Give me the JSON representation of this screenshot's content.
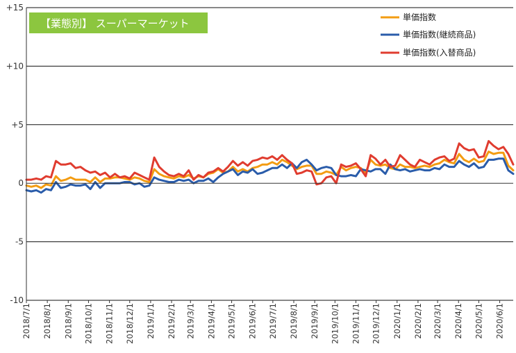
{
  "chart_data": {
    "type": "line",
    "title": "【業態別】 スーパーマーケット",
    "colors": {
      "title_bg": "#8cc63f",
      "axis": "#333333",
      "grid": "#111111",
      "series": [
        "#f39c12",
        "#2a5caa",
        "#e03c2f"
      ]
    },
    "ylim": [
      -10,
      15
    ],
    "yticks": [
      15,
      10,
      5,
      0,
      -5,
      -10
    ],
    "ytick_labels": [
      "+15",
      "+10",
      "+5",
      "0",
      "-5",
      "-10"
    ],
    "grid": "horizontal",
    "legend_position": "top-right",
    "x_start": "2018/7/1",
    "x_end": "2020/6/21",
    "x_ticks": [
      "2018/7/1",
      "2018/8/1",
      "2018/9/1",
      "2018/10/1",
      "2018/11/1",
      "2018/12/1",
      "2019/1/1",
      "2019/2/1",
      "2019/3/1",
      "2019/4/1",
      "2019/5/1",
      "2019/6/1",
      "2019/7/1",
      "2019/8/1",
      "2019/9/1",
      "2019/10/1",
      "2019/11/1",
      "2019/12/1",
      "2020/1/1",
      "2020/2/1",
      "2020/3/1",
      "2020/4/1",
      "2020/5/1",
      "2020/6/1"
    ],
    "series": [
      {
        "name": "単価指数",
        "values": [
          -0.2,
          -0.3,
          -0.2,
          -0.4,
          -0.1,
          -0.2,
          0.6,
          0.2,
          0.3,
          0.5,
          0.3,
          0.3,
          0.3,
          0.1,
          0.5,
          0.1,
          0.4,
          0.4,
          0.5,
          0.5,
          0.4,
          0.3,
          0.5,
          0.4,
          0.2,
          0.1,
          1.2,
          0.8,
          0.6,
          0.5,
          0.4,
          0.6,
          0.5,
          0.7,
          0.4,
          0.6,
          0.5,
          0.8,
          0.9,
          1.2,
          0.9,
          1.0,
          1.4,
          1.0,
          1.2,
          1.0,
          1.3,
          1.4,
          1.6,
          1.6,
          1.8,
          1.6,
          2.0,
          1.8,
          1.5,
          1.2,
          1.4,
          1.5,
          1.5,
          0.8,
          0.8,
          1.0,
          0.9,
          0.7,
          1.4,
          1.1,
          1.3,
          1.4,
          1.3,
          0.9,
          2.0,
          1.6,
          1.5,
          1.6,
          1.3,
          1.2,
          1.6,
          1.4,
          1.4,
          1.3,
          1.4,
          1.5,
          1.4,
          1.6,
          1.7,
          2.0,
          1.8,
          1.7,
          2.5,
          2.0,
          1.8,
          2.1,
          1.8,
          1.9,
          2.7,
          2.5,
          2.6,
          2.6,
          1.5,
          1.1
        ]
      },
      {
        "name": "単価指数(継続商品)",
        "values": [
          -0.6,
          -0.7,
          -0.6,
          -0.8,
          -0.5,
          -0.6,
          0.1,
          -0.4,
          -0.3,
          -0.1,
          -0.2,
          -0.2,
          -0.1,
          -0.5,
          0.1,
          -0.4,
          0.0,
          0.0,
          0.0,
          0.0,
          0.1,
          0.1,
          -0.1,
          0.0,
          -0.3,
          -0.2,
          0.5,
          0.3,
          0.2,
          0.1,
          0.1,
          0.3,
          0.2,
          0.3,
          0.0,
          0.2,
          0.2,
          0.4,
          0.1,
          0.5,
          0.8,
          1.0,
          1.2,
          0.7,
          1.0,
          0.9,
          1.2,
          0.8,
          0.9,
          1.1,
          1.3,
          1.3,
          1.6,
          1.3,
          1.7,
          1.3,
          1.8,
          2.0,
          1.6,
          1.1,
          1.3,
          1.4,
          1.3,
          0.7,
          0.6,
          0.6,
          0.7,
          0.6,
          1.2,
          1.1,
          1.0,
          1.2,
          1.2,
          0.8,
          1.6,
          1.2,
          1.1,
          1.2,
          1.0,
          1.1,
          1.2,
          1.1,
          1.1,
          1.3,
          1.2,
          1.6,
          1.4,
          1.4,
          1.9,
          1.6,
          1.4,
          1.7,
          1.3,
          1.4,
          2.0,
          2.0,
          2.1,
          2.1,
          1.1,
          0.8
        ]
      },
      {
        "name": "単価指数(入替商品)",
        "values": [
          0.3,
          0.3,
          0.4,
          0.3,
          0.6,
          0.5,
          1.9,
          1.6,
          1.6,
          1.7,
          1.3,
          1.4,
          1.1,
          0.9,
          1.0,
          0.7,
          0.9,
          0.5,
          0.8,
          0.5,
          0.6,
          0.4,
          0.9,
          0.7,
          0.5,
          0.3,
          2.2,
          1.4,
          1.0,
          0.7,
          0.6,
          0.8,
          0.6,
          1.1,
          0.3,
          0.7,
          0.5,
          0.9,
          1.0,
          1.3,
          1.0,
          1.4,
          1.9,
          1.5,
          1.8,
          1.5,
          1.9,
          2.0,
          2.2,
          2.1,
          2.3,
          2.0,
          2.4,
          2.0,
          1.7,
          0.8,
          0.9,
          1.1,
          1.0,
          -0.1,
          0.0,
          0.5,
          0.6,
          0.0,
          1.6,
          1.4,
          1.5,
          1.7,
          1.2,
          0.6,
          2.4,
          2.1,
          1.6,
          2.0,
          1.4,
          1.5,
          2.4,
          2.0,
          1.6,
          1.4,
          2.0,
          1.8,
          1.6,
          2.0,
          2.2,
          2.3,
          1.9,
          2.1,
          3.4,
          3.0,
          2.8,
          2.9,
          2.2,
          2.3,
          3.6,
          3.2,
          2.9,
          3.1,
          2.5,
          1.6
        ]
      }
    ]
  }
}
